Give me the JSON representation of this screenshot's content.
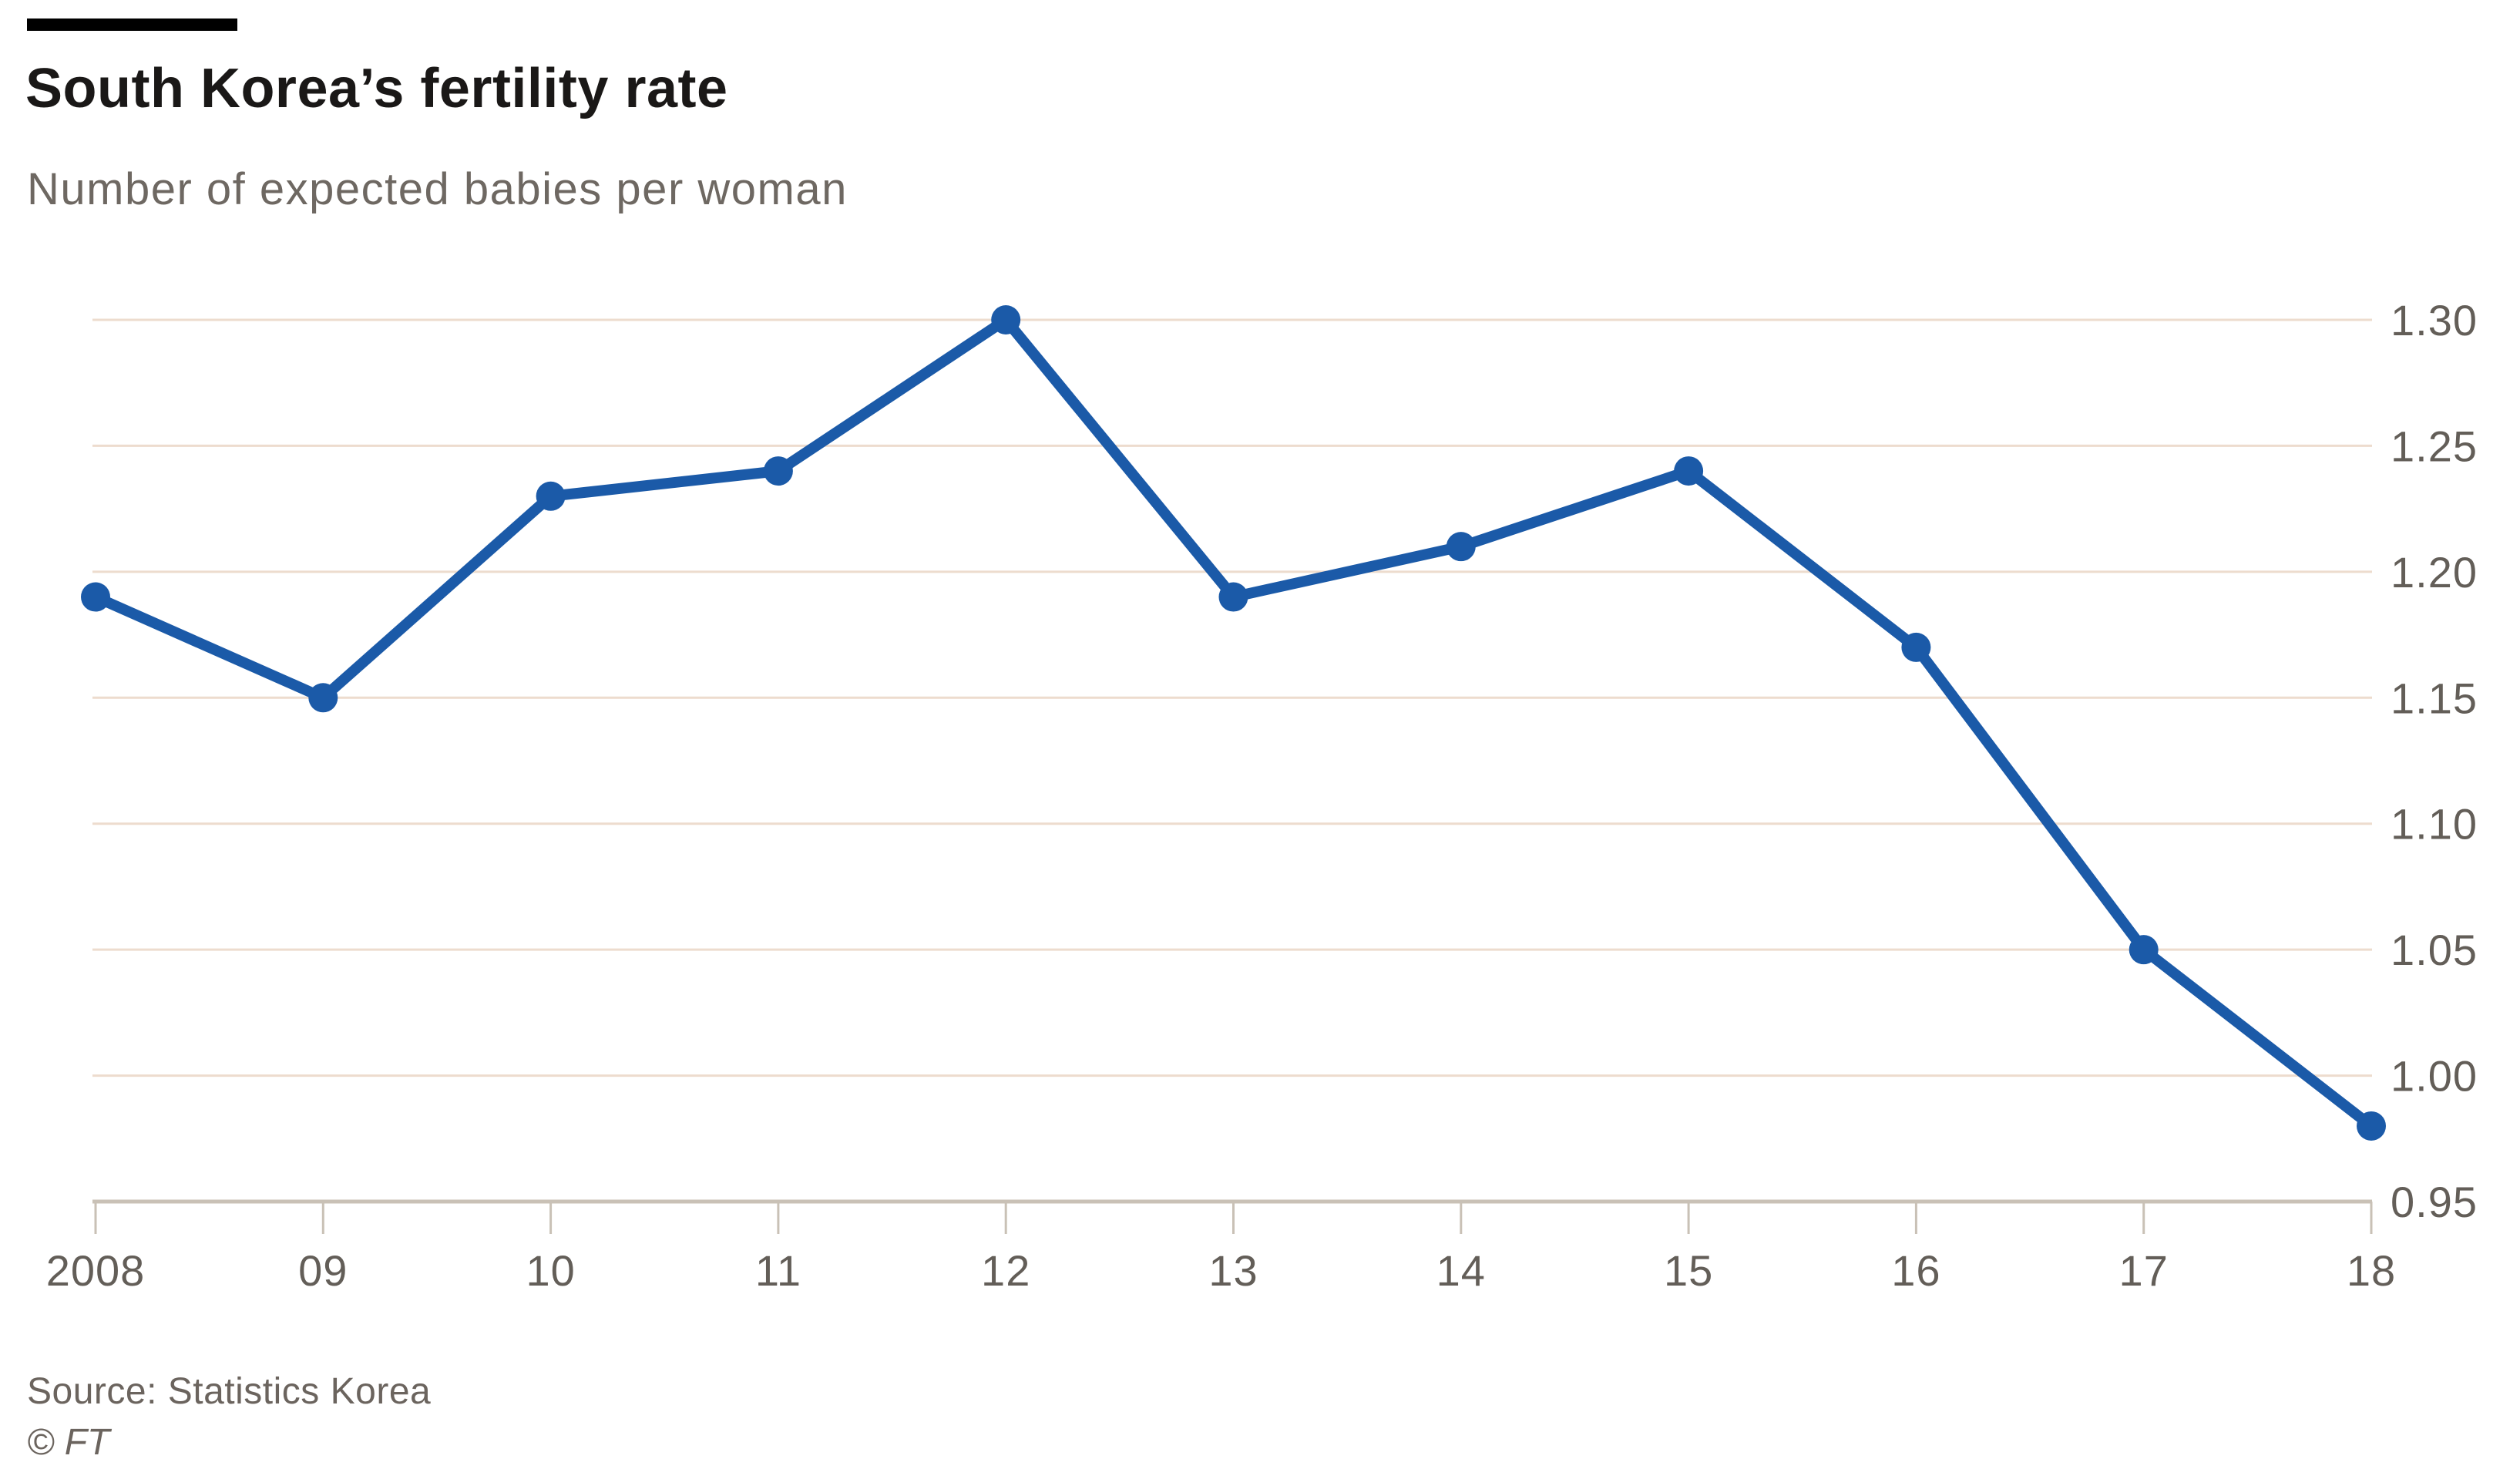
{
  "header": {
    "title": "South Korea’s fertility rate",
    "subtitle": "Number of expected babies per woman"
  },
  "footer": {
    "source": "Source: Statistics Korea",
    "copyright": "© FT"
  },
  "chart_data": {
    "type": "line",
    "title": "South Korea’s fertility rate",
    "subtitle": "Number of expected babies per woman",
    "categories": [
      "2008",
      "09",
      "10",
      "11",
      "12",
      "13",
      "14",
      "15",
      "16",
      "17",
      "18"
    ],
    "values": [
      1.19,
      1.15,
      1.23,
      1.24,
      1.3,
      1.19,
      1.21,
      1.24,
      1.17,
      1.05,
      0.98
    ],
    "y_ticks": [
      1.3,
      1.25,
      1.2,
      1.15,
      1.1,
      1.05,
      1.0,
      0.95
    ],
    "ylim": [
      0.95,
      1.3
    ],
    "y_tick_decimals": 2,
    "grid": "horizontal",
    "legend_position": "none",
    "y_labels_position": "right",
    "source": "Source: Statistics Korea",
    "colors": {
      "line": "#1b5aa8",
      "point": "#1b5aa8",
      "grid": "#eddcce",
      "axis": "#c9c1b6",
      "tick": "#c9c1b6",
      "tick_text": "#635e58",
      "title_text": "#1a1817",
      "subtitle_text": "#6e6862",
      "accent_bar": "#000000",
      "background": "#ffffff"
    }
  }
}
